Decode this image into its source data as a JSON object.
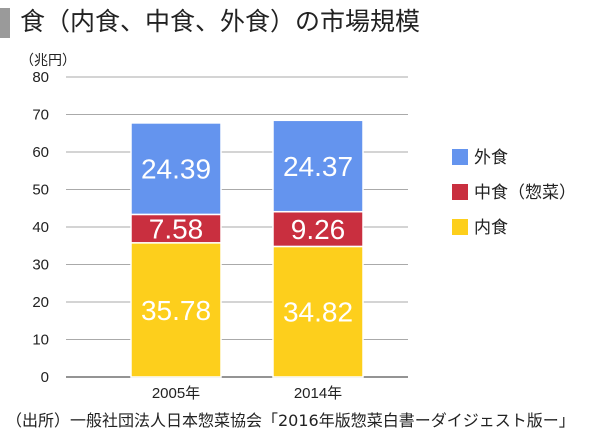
{
  "title": "食（内食、中食、外食）の市場規模",
  "source": "（出所）一般社団法人日本惣菜協会「2016年版惣菜白書ーダイジェスト版ー」",
  "chart_data": {
    "type": "bar",
    "stacked": true,
    "categories": [
      "2005年",
      "2014年"
    ],
    "series": [
      {
        "name": "内食",
        "values": [
          35.78,
          34.82
        ],
        "color": "#fdcf1c"
      },
      {
        "name": "中食（惣菜）",
        "values": [
          7.58,
          9.26
        ],
        "color": "#c92f3f"
      },
      {
        "name": "外食",
        "values": [
          24.39,
          24.37
        ],
        "color": "#6494ee"
      }
    ],
    "legend_order": [
      "外食",
      "中食（惣菜）",
      "内食"
    ],
    "legend_placement": "right",
    "ylabel": "（兆円）",
    "ylim": [
      0,
      80
    ],
    "yticks": [
      0,
      10,
      20,
      30,
      40,
      50,
      60,
      70,
      80
    ],
    "grid": true
  }
}
